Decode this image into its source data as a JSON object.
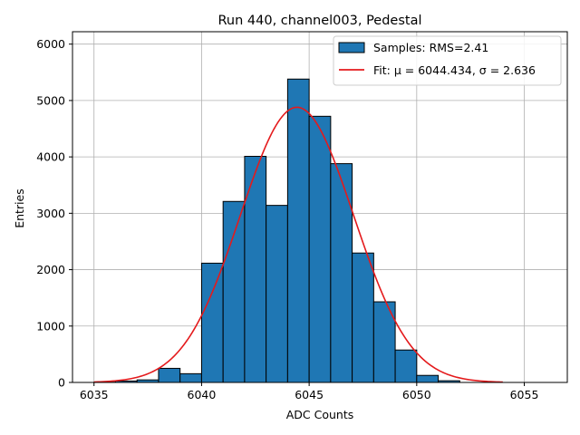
{
  "chart_data": {
    "type": "bar",
    "title": "Run 440, channel003, Pedestal",
    "xlabel": "ADC Counts",
    "ylabel": "Entries",
    "xlim": [
      6034,
      6057
    ],
    "ylim": [
      0,
      6220
    ],
    "xticks": [
      6035,
      6040,
      6045,
      6050,
      6055
    ],
    "yticks": [
      0,
      1000,
      2000,
      3000,
      4000,
      5000,
      6000
    ],
    "grid": true,
    "legend_position": "top-right",
    "bin_width": 1,
    "bins": [
      6035,
      6036,
      6037,
      6038,
      6039,
      6040,
      6041,
      6042,
      6043,
      6044,
      6045,
      6046,
      6047,
      6048,
      6049,
      6050,
      6051,
      6052,
      6053,
      6054,
      6055
    ],
    "counts": [
      5,
      25,
      45,
      250,
      155,
      2115,
      3210,
      4010,
      3140,
      5380,
      4720,
      3880,
      2295,
      1430,
      575,
      125,
      30,
      0,
      0,
      0,
      0
    ],
    "fit": {
      "mu": 6044.434,
      "sigma": 2.636,
      "amplitude": 4880,
      "x_range": [
        6035,
        6054
      ]
    },
    "series": [
      {
        "name": "Samples: RMS=2.41",
        "color": "#1f77b4",
        "edge": "#000000"
      },
      {
        "name": "Fit: μ = 6044.434, σ = 2.636",
        "color": "#e41a1c"
      }
    ]
  }
}
